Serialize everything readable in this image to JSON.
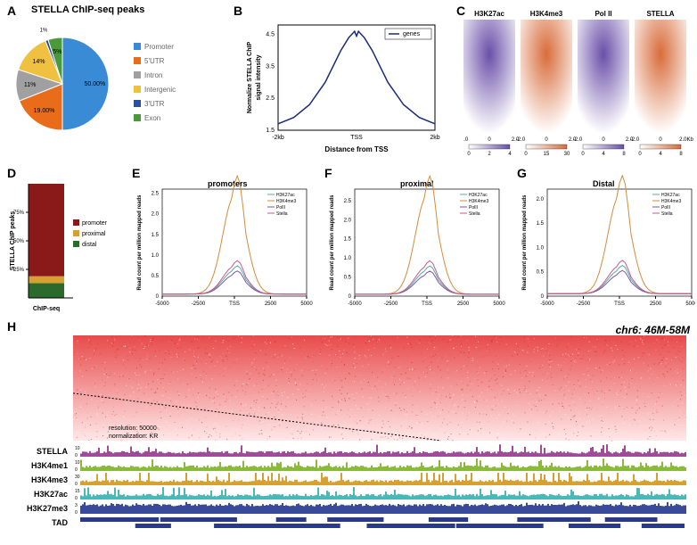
{
  "panelA": {
    "label": "A",
    "title": "STELLA ChIP-seq peaks",
    "type": "pie",
    "slices": [
      {
        "label": "Promoter",
        "value": 50.0,
        "color": "#3a8bd6",
        "pctText": "50.00%"
      },
      {
        "label": "5'UTR",
        "value": 19.0,
        "color": "#e86c1a",
        "pctText": "19.00%"
      },
      {
        "label": "Intron",
        "value": 11,
        "color": "#a0a0a0",
        "pctText": "11%"
      },
      {
        "label": "Intergenic",
        "value": 14,
        "color": "#f0c040",
        "pctText": "14%"
      },
      {
        "label": "3'UTR",
        "value": 1,
        "color": "#2d4fa0",
        "pctText": "1%"
      },
      {
        "label": "Exon",
        "value": 5,
        "color": "#4a9a3a",
        "pctText": "5%"
      }
    ]
  },
  "panelB": {
    "label": "B",
    "type": "line",
    "xlabel": "Distance from TSS",
    "ylabel": "Normalize STELLA ChIP\\nsignal intensity",
    "legend": "genes",
    "line_color": "#1a2a7a",
    "xticks": [
      "-2kb",
      "TSS",
      "2kb"
    ],
    "yticks": [
      "1.5",
      "2.5",
      "3.5",
      "4.5"
    ],
    "ylim": [
      1.5,
      4.8
    ],
    "curve": [
      [
        -2000,
        1.7
      ],
      [
        -1600,
        1.9
      ],
      [
        -1200,
        2.3
      ],
      [
        -800,
        3.0
      ],
      [
        -400,
        4.0
      ],
      [
        -200,
        4.4
      ],
      [
        -50,
        4.6
      ],
      [
        0,
        4.45
      ],
      [
        50,
        4.6
      ],
      [
        200,
        4.4
      ],
      [
        400,
        4.0
      ],
      [
        800,
        3.0
      ],
      [
        1200,
        2.3
      ],
      [
        1600,
        1.9
      ],
      [
        2000,
        1.7
      ]
    ]
  },
  "panelC": {
    "label": "C",
    "type": "heatmap",
    "columns": [
      "H3K27ac",
      "H3K4me3",
      "Pol II",
      "STELLA"
    ],
    "column_colors": [
      "#6a4fa8",
      "#d86c3a",
      "#6a4fa8",
      "#d86c3a"
    ],
    "xticks": [
      "-2.0",
      "0",
      "2.0",
      "-2.0",
      "0",
      "2.0",
      "-2.0",
      "0",
      "2.0",
      "-2.0",
      "0",
      "2.0Kb"
    ],
    "colorbars": [
      {
        "min": 0,
        "mid": 2,
        "max": 4
      },
      {
        "min": 0,
        "mid": 15,
        "max": 30
      },
      {
        "min": 0,
        "mid": 4,
        "max": 8
      },
      {
        "min": 0,
        "mid": 4,
        "max": 8
      }
    ]
  },
  "panelD": {
    "label": "D",
    "type": "stacked-bar",
    "ylabel": "STELLA ChIP peaks",
    "xlabel": "ChIP-seq",
    "yticks": [
      "25%",
      "50%",
      "75%"
    ],
    "segments": [
      {
        "label": "promoter",
        "value": 81,
        "color": "#8a1a1a"
      },
      {
        "label": "proximal",
        "value": 6,
        "color": "#d8a030"
      },
      {
        "label": "distal",
        "value": 13,
        "color": "#2a6a2a"
      }
    ]
  },
  "panelE": {
    "label": "E",
    "title": "promoters",
    "type": "line",
    "xlabel": "",
    "ylabel": "Read count per million mapped reads",
    "xticks": [
      "-5000",
      "-2500",
      "TSS",
      "2500",
      "5000"
    ],
    "yticks": [
      "0",
      "0.5",
      "1.0",
      "1.5",
      "2.0",
      "2.5"
    ],
    "ylim": [
      0,
      2.6
    ],
    "series": [
      {
        "name": "H3K27ac",
        "color": "#5aa8a8"
      },
      {
        "name": "H3K4me3",
        "color": "#d88a3a"
      },
      {
        "name": "PolII",
        "color": "#7a5aa8"
      },
      {
        "name": "Stella",
        "color": "#c85a8a"
      }
    ]
  },
  "panelF": {
    "label": "F",
    "title": "proximal",
    "type": "line",
    "ylabel": "Read count per million mapped reads",
    "xticks": [
      "-5000",
      "-2500",
      "TSS",
      "2500",
      "5000"
    ],
    "yticks": [
      "0",
      "0.5",
      "1.0",
      "1.5",
      "2.0",
      "2.5"
    ],
    "ylim": [
      0,
      2.8
    ],
    "series": [
      {
        "name": "H3K27ac",
        "color": "#5aa8a8"
      },
      {
        "name": "H3K4me3",
        "color": "#d88a3a"
      },
      {
        "name": "PolII",
        "color": "#7a5aa8"
      },
      {
        "name": "Stella",
        "color": "#c85a8a"
      }
    ]
  },
  "panelG": {
    "label": "G",
    "title": "Distal",
    "type": "line",
    "ylabel": "Read count per million mapped reads",
    "xticks": [
      "-5000",
      "-2500",
      "TSS",
      "2500",
      "5000"
    ],
    "yticks": [
      "0",
      "0.5",
      "1.0",
      "1.5",
      "2.0"
    ],
    "ylim": [
      0,
      2.2
    ],
    "series": [
      {
        "name": "H3K27ac",
        "color": "#5aa8a8"
      },
      {
        "name": "H3K4me3",
        "color": "#d88a3a"
      },
      {
        "name": "PolII",
        "color": "#7a5aa8"
      },
      {
        "name": "Stella",
        "color": "#c85a8a"
      }
    ]
  },
  "panelH": {
    "label": "H",
    "region": "chr6: 46M-58M",
    "heatmap_color": "#c41a1a",
    "resolution_text": "resolution: 50000",
    "normalization_text": "normalization: KR",
    "tracks": [
      {
        "name": "STELLA",
        "color": "#a04a9a",
        "yscale": "10"
      },
      {
        "name": "H3K4me1",
        "color": "#8aba3a",
        "yscale": "10"
      },
      {
        "name": "H3K4me3",
        "color": "#d8a030",
        "yscale": "30"
      },
      {
        "name": "H3K27ac",
        "color": "#4ab8b8",
        "yscale": "15"
      },
      {
        "name": "H3K27me3",
        "color": "#3a4a9a",
        "yscale": "3"
      },
      {
        "name": "TAD",
        "color": "#2a3a8a",
        "yscale": ""
      }
    ]
  }
}
